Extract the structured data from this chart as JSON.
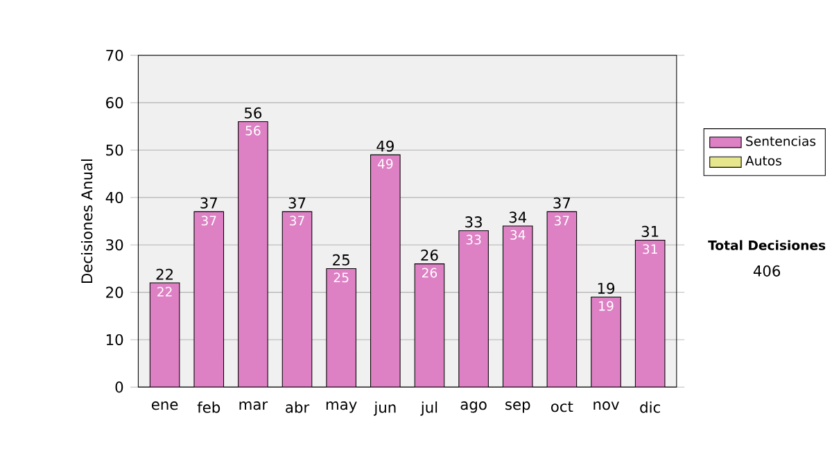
{
  "chart_data": {
    "type": "bar",
    "stacked": true,
    "ylabel": "Decisiones Anual",
    "categories": [
      "ene",
      "feb",
      "mar",
      "abr",
      "may",
      "jun",
      "jul",
      "ago",
      "sep",
      "oct",
      "nov",
      "dic"
    ],
    "series": [
      {
        "name": "Sentencias",
        "color": "#dd80c4",
        "values": [
          22,
          37,
          56,
          37,
          25,
          49,
          26,
          33,
          34,
          37,
          19,
          31
        ],
        "value_labels": [
          "22",
          "37",
          "56",
          "37",
          "25",
          "49",
          "26",
          "33",
          "34",
          "37",
          "19",
          "31"
        ]
      },
      {
        "name": "Autos",
        "color": "#e6e68c",
        "values": [
          0,
          0,
          0,
          0,
          0,
          0,
          0,
          0,
          0,
          0,
          0,
          0
        ]
      }
    ],
    "totals": [
      "22",
      "37",
      "56",
      "37",
      "25",
      "49",
      "26",
      "33",
      "34",
      "37",
      "19",
      "31"
    ],
    "ylim": [
      0,
      70
    ],
    "yticks": [
      0,
      10,
      20,
      30,
      40,
      50,
      60,
      70
    ],
    "grid": "y",
    "legend": "right",
    "annotations": [
      "Total Decisiones",
      "406"
    ]
  }
}
